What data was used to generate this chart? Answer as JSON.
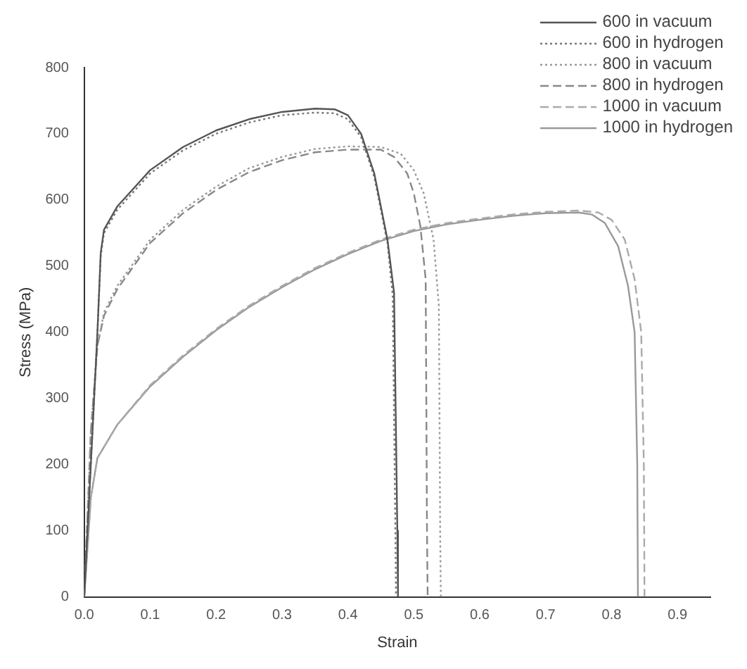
{
  "chart_data": {
    "type": "line",
    "xlabel": "Strain",
    "ylabel": "Stress (MPa)",
    "xlim": [
      0,
      0.95
    ],
    "ylim": [
      0,
      800
    ],
    "xticks": [
      {
        "value": 0,
        "label": "0.0"
      },
      0.1,
      0.2,
      0.3,
      0.4,
      0.5,
      0.6,
      0.7,
      0.8,
      0.9
    ],
    "yticks": [
      0,
      100,
      200,
      300,
      400,
      500,
      600,
      700,
      800
    ],
    "grid": false,
    "legend": "top right",
    "marker": "none",
    "series": [
      {
        "name": "600 in vacuum",
        "color": "#555555",
        "line_style": "solid",
        "x": [
          0,
          0.01,
          0.02,
          0.025,
          0.03,
          0.05,
          0.1,
          0.15,
          0.2,
          0.25,
          0.3,
          0.35,
          0.38,
          0.4,
          0.42,
          0.44,
          0.46,
          0.47,
          0.475,
          0.476
        ],
        "values": [
          0,
          200,
          400,
          520,
          555,
          590,
          645,
          680,
          705,
          722,
          733,
          738,
          737,
          728,
          700,
          640,
          540,
          460,
          100,
          0
        ]
      },
      {
        "name": "600 in hydrogen",
        "color": "#777777",
        "line_style": "dotted",
        "x": [
          0,
          0.01,
          0.02,
          0.025,
          0.03,
          0.05,
          0.1,
          0.15,
          0.2,
          0.25,
          0.3,
          0.35,
          0.38,
          0.4,
          0.42,
          0.44,
          0.46,
          0.468,
          0.472,
          0.473
        ],
        "values": [
          0,
          200,
          400,
          515,
          550,
          585,
          640,
          675,
          700,
          717,
          728,
          732,
          731,
          722,
          695,
          635,
          535,
          455,
          100,
          0
        ]
      },
      {
        "name": "800 in vacuum",
        "color": "#999999",
        "line_style": "dotted",
        "x": [
          0,
          0.01,
          0.02,
          0.03,
          0.05,
          0.1,
          0.15,
          0.2,
          0.25,
          0.3,
          0.35,
          0.4,
          0.45,
          0.48,
          0.5,
          0.515,
          0.53,
          0.538,
          0.54,
          0.541
        ],
        "values": [
          0,
          250,
          380,
          430,
          470,
          540,
          585,
          620,
          648,
          665,
          677,
          681,
          680,
          670,
          645,
          610,
          540,
          440,
          100,
          0
        ]
      },
      {
        "name": "800 in hydrogen",
        "color": "#888888",
        "line_style": "dashed",
        "x": [
          0,
          0.01,
          0.02,
          0.03,
          0.05,
          0.1,
          0.15,
          0.2,
          0.25,
          0.3,
          0.35,
          0.4,
          0.45,
          0.47,
          0.49,
          0.5,
          0.51,
          0.518,
          0.52,
          0.521
        ],
        "values": [
          0,
          250,
          380,
          425,
          465,
          535,
          580,
          615,
          642,
          660,
          672,
          676,
          676,
          665,
          640,
          610,
          560,
          480,
          100,
          0
        ]
      },
      {
        "name": "1000 in vacuum",
        "color": "#aaaaaa",
        "line_style": "dashed",
        "x": [
          0,
          0.01,
          0.02,
          0.05,
          0.1,
          0.15,
          0.2,
          0.25,
          0.3,
          0.35,
          0.4,
          0.45,
          0.5,
          0.55,
          0.6,
          0.65,
          0.7,
          0.75,
          0.78,
          0.8,
          0.82,
          0.835,
          0.845,
          0.849,
          0.85
        ],
        "values": [
          0,
          150,
          210,
          260,
          320,
          365,
          405,
          440,
          470,
          497,
          520,
          540,
          555,
          565,
          572,
          578,
          582,
          584,
          581,
          570,
          540,
          480,
          400,
          200,
          0
        ]
      },
      {
        "name": "1000 in hydrogen",
        "color": "#999999",
        "line_style": "solid",
        "x": [
          0,
          0.01,
          0.02,
          0.05,
          0.1,
          0.15,
          0.2,
          0.25,
          0.3,
          0.35,
          0.4,
          0.45,
          0.5,
          0.55,
          0.6,
          0.65,
          0.7,
          0.75,
          0.77,
          0.79,
          0.81,
          0.825,
          0.835,
          0.839,
          0.84
        ],
        "values": [
          0,
          150,
          210,
          260,
          318,
          363,
          403,
          438,
          468,
          495,
          518,
          538,
          553,
          563,
          570,
          576,
          580,
          581,
          578,
          565,
          530,
          470,
          400,
          200,
          0
        ]
      }
    ]
  }
}
